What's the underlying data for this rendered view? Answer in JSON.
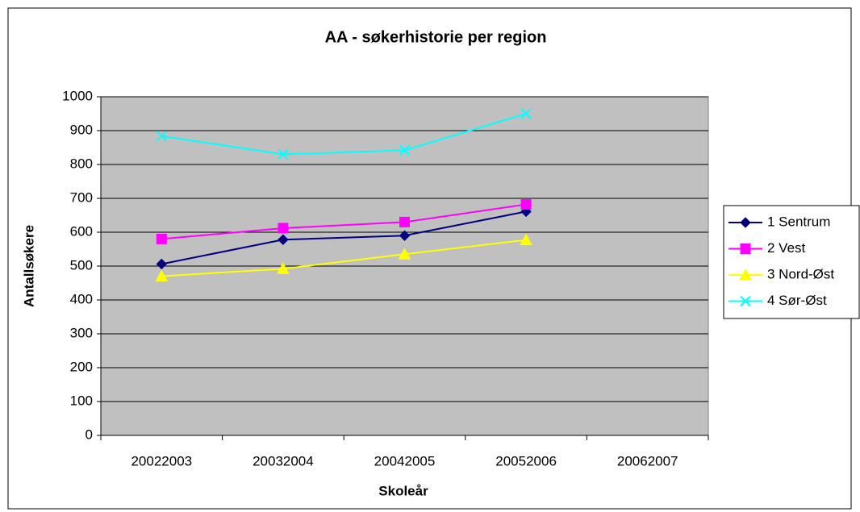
{
  "chart_data": {
    "type": "line",
    "title": "AA - søkerhistorie per region",
    "x_label": "Skoleår",
    "y_label": "Antallsøkere",
    "categories": [
      "20022003",
      "20032004",
      "20042005",
      "20052006",
      "20062007"
    ],
    "series": [
      {
        "name": "1 Sentrum",
        "color": "#000080",
        "marker": "diamond",
        "values": [
          506,
          578,
          590,
          661,
          null
        ]
      },
      {
        "name": "2 Vest",
        "color": "#ff00ff",
        "marker": "square",
        "values": [
          580,
          612,
          630,
          682,
          null
        ]
      },
      {
        "name": "3 Nord-Øst",
        "color": "#ffff00",
        "marker": "triangle",
        "values": [
          470,
          492,
          535,
          577,
          null
        ]
      },
      {
        "name": "4 Sør-Øst",
        "color": "#00ffff",
        "marker": "x",
        "values": [
          884,
          830,
          842,
          950,
          null
        ]
      }
    ],
    "ylim": [
      0,
      1000
    ],
    "yticks": [
      0,
      100,
      200,
      300,
      400,
      500,
      600,
      700,
      800,
      900,
      1000
    ],
    "grid": true,
    "legend": "right"
  }
}
